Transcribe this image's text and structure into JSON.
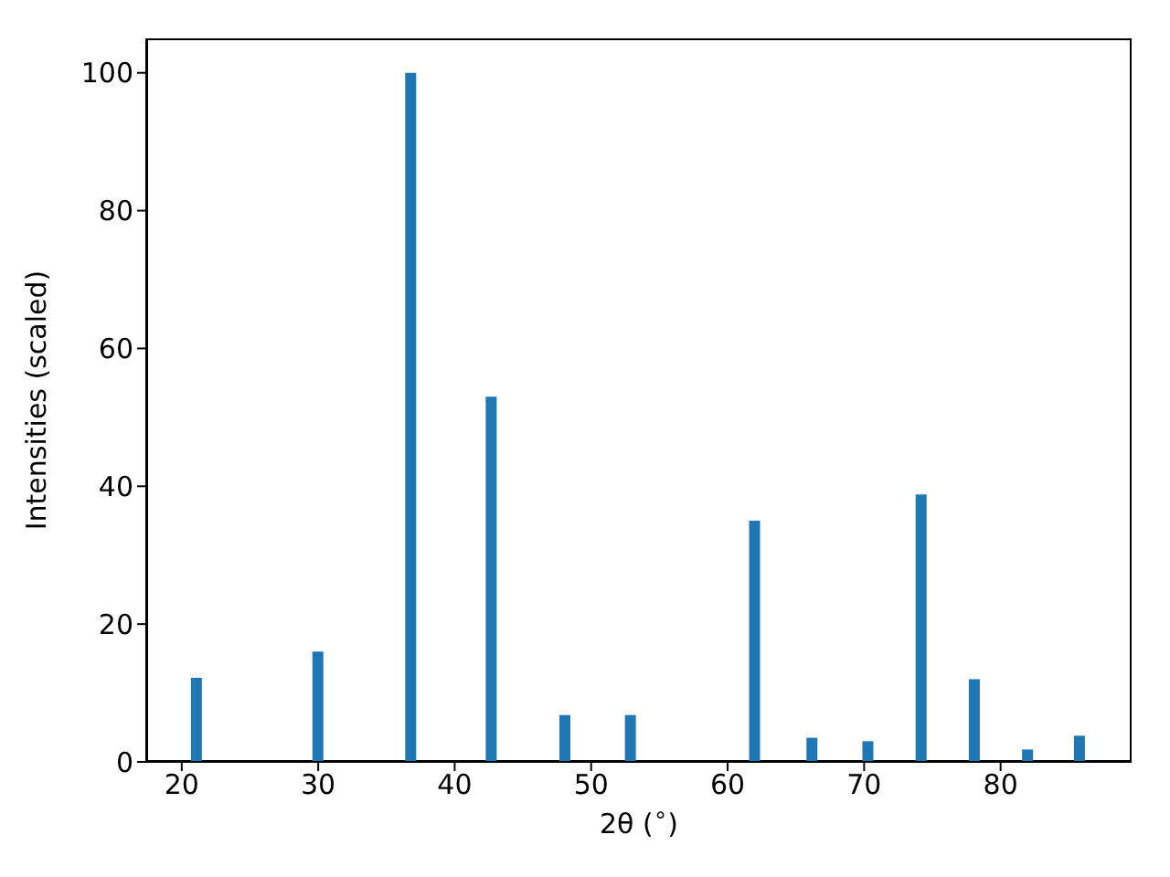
{
  "chart_data": {
    "type": "bar",
    "xlabel": "2θ ($^{∘}$)",
    "ylabel": "Intensities (scaled)",
    "x": [
      21.1,
      30.0,
      36.8,
      42.7,
      48.1,
      52.9,
      62.0,
      66.2,
      70.3,
      74.2,
      78.1,
      82.0,
      85.8
    ],
    "values": [
      12.2,
      16,
      100,
      53,
      6.8,
      6.8,
      35,
      3.5,
      3,
      38.8,
      12,
      1.8,
      3.8
    ],
    "color": "#1f77b4",
    "xlim": [
      17.4,
      89.6
    ],
    "xticks": [
      20,
      30,
      40,
      50,
      60,
      70,
      80
    ],
    "ylim": [
      0,
      105
    ],
    "yticks": [
      0,
      20,
      40,
      60,
      80,
      100
    ]
  }
}
